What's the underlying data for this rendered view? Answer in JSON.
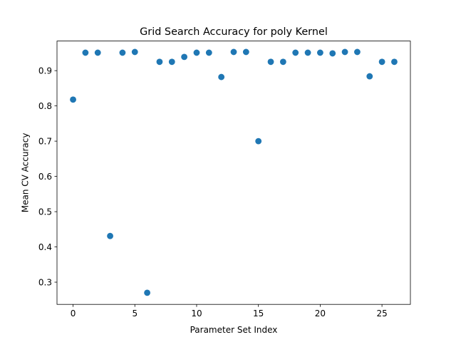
{
  "chart_data": {
    "type": "scatter",
    "title": "Grid Search Accuracy for poly Kernel",
    "xlabel": "Parameter Set Index",
    "ylabel": "Mean CV Accuracy",
    "xlim": [
      -1.3,
      27.3
    ],
    "ylim": [
      0.237,
      0.984
    ],
    "xticks": [
      0,
      5,
      10,
      15,
      20,
      25
    ],
    "xtick_labels": [
      "0",
      "5",
      "10",
      "15",
      "20",
      "25"
    ],
    "yticks": [
      0.3,
      0.4,
      0.5,
      0.6,
      0.7,
      0.8,
      0.9
    ],
    "ytick_labels": [
      "0.3",
      "0.4",
      "0.5",
      "0.6",
      "0.7",
      "0.8",
      "0.9"
    ],
    "grid": false,
    "marker_color": "#1f77b4",
    "series": [
      {
        "x": [
          0,
          1,
          2,
          3,
          4,
          5,
          6,
          7,
          8,
          9,
          10,
          11,
          12,
          13,
          14,
          15,
          16,
          17,
          18,
          19,
          20,
          21,
          22,
          23,
          24,
          25,
          26
        ],
        "values": [
          0.818,
          0.951,
          0.951,
          0.431,
          0.951,
          0.953,
          0.27,
          0.925,
          0.925,
          0.939,
          0.951,
          0.951,
          0.882,
          0.953,
          0.953,
          0.7,
          0.925,
          0.925,
          0.951,
          0.951,
          0.951,
          0.949,
          0.953,
          0.953,
          0.884,
          0.925,
          0.925
        ]
      }
    ]
  }
}
